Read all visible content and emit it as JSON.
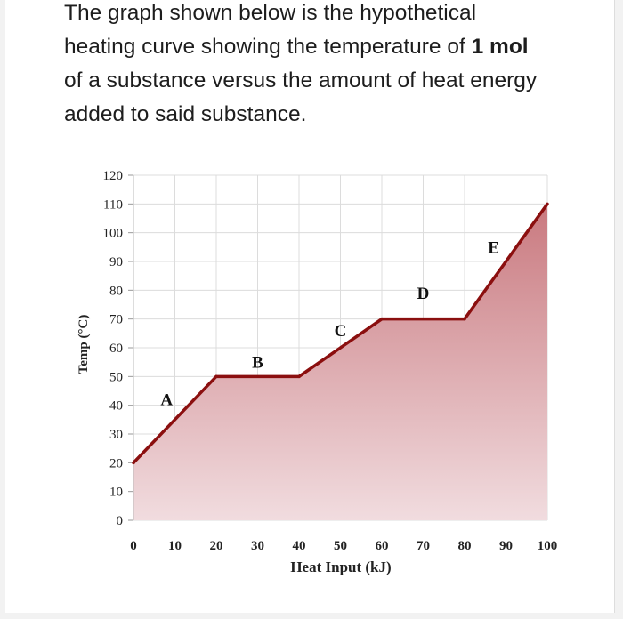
{
  "question": {
    "line1": "The graph shown below is the hypothetical",
    "line2a": "heating curve showing the temperature of ",
    "line2b": "1 mol",
    "line3": "of a substance versus the amount of heat energy",
    "line4": "added to said substance."
  },
  "colors": {
    "line": "#8b0f0f",
    "fill_top": "#c9797f",
    "fill_bottom": "#f1dcdf",
    "grid": "#dcdcdc",
    "text": "#222222"
  },
  "chart_data": {
    "type": "line",
    "xlabel": "Heat Input (kJ)",
    "ylabel": "Temp (°C)",
    "xlim": [
      0,
      100
    ],
    "ylim": [
      0,
      120
    ],
    "xticks": [
      "0",
      "10",
      "20",
      "30",
      "40",
      "50",
      "60",
      "70",
      "80",
      "90",
      "100"
    ],
    "yticks": [
      "0",
      "10",
      "20",
      "30",
      "40",
      "50",
      "60",
      "70",
      "80",
      "90",
      "100",
      "110",
      "120"
    ],
    "grid": true,
    "area_fill": true,
    "series": [
      {
        "x": [
          0,
          20,
          40,
          60,
          80,
          100
        ],
        "y": [
          20,
          50,
          50,
          70,
          70,
          110
        ]
      }
    ],
    "annotations": [
      {
        "text": "A",
        "x": 8,
        "y": 40
      },
      {
        "text": "B",
        "x": 30,
        "y": 53
      },
      {
        "text": "C",
        "x": 50,
        "y": 64
      },
      {
        "text": "D",
        "x": 70,
        "y": 77
      },
      {
        "text": "E",
        "x": 87,
        "y": 93
      }
    ]
  }
}
